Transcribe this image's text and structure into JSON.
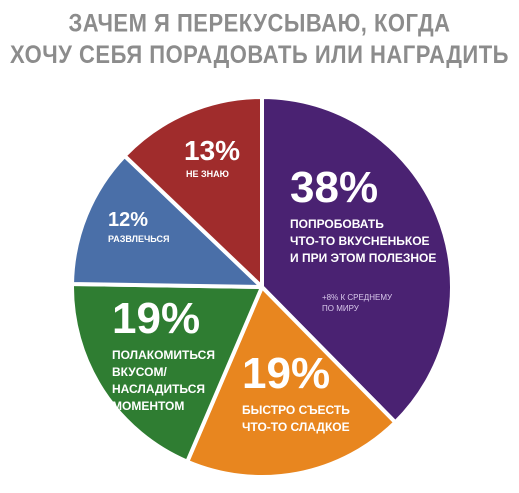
{
  "title_lines": [
    "ЗАЧЕМ Я ПЕРЕКУСЫВАЮ, КОГДА",
    "ХОЧУ СЕБЯ ПОРАДОВАТЬ ИЛИ НАГРАДИТЬ"
  ],
  "chart_data": {
    "type": "pie",
    "title": "ЗАЧЕМ Я ПЕРЕКУСЫВАЮ, КОГДА ХОЧУ СЕБЯ ПОРАДОВАТЬ ИЛИ НАГРАДИТЬ",
    "slices": [
      {
        "value": 38,
        "pct_label": "38%",
        "label_lines": [
          "ПОПРОБОВАТЬ",
          "ЧТО-ТО ВКУСНЕНЬКОЕ",
          "И ПРИ ЭТОМ ПОЛЕЗНОЕ"
        ],
        "note_lines": [
          "+8% К СРЕДНЕМУ",
          "ПО МИРУ"
        ],
        "color": "#4a2272"
      },
      {
        "value": 19,
        "pct_label": "19%",
        "label_lines": [
          "БЫСТРО СЪЕСТЬ",
          "ЧТО-ТО СЛАДКОЕ"
        ],
        "color": "#e8861f"
      },
      {
        "value": 19,
        "pct_label": "19%",
        "label_lines": [
          "ПОЛАКОМИТЬСЯ",
          "ВКУСОМ/",
          "НАСЛАДИТЬСЯ",
          "МОМЕНТОМ"
        ],
        "color": "#2f7d32"
      },
      {
        "value": 12,
        "pct_label": "12%",
        "label_lines": [
          "РАЗВЛЕЧЬСЯ"
        ],
        "color": "#4a6fa8"
      },
      {
        "value": 13,
        "pct_label": "13%",
        "label_lines": [
          "НЕ ЗНАЮ"
        ],
        "color": "#a02c2c"
      }
    ]
  }
}
